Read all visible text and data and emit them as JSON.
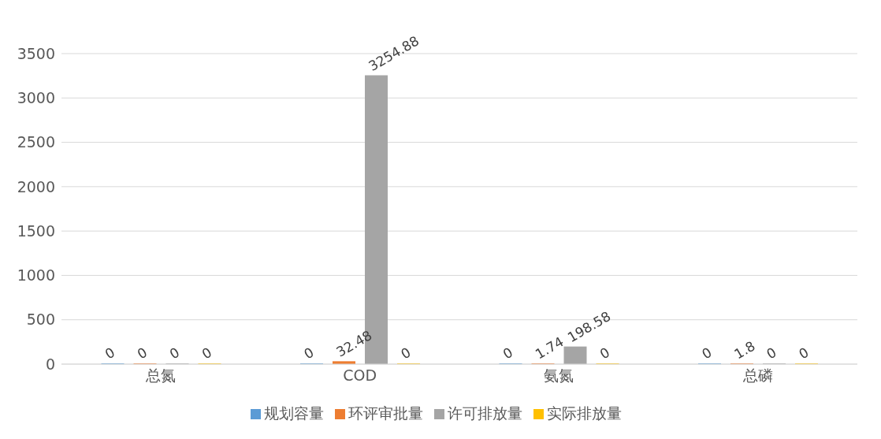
{
  "chart_data": {
    "type": "bar",
    "categories": [
      "总氮",
      "COD",
      "氨氮",
      "总磷"
    ],
    "series": [
      {
        "name": "规划容量",
        "color": "#5b9bd5",
        "values": [
          0,
          0,
          0,
          0
        ]
      },
      {
        "name": "环评审批量",
        "color": "#ed7d31",
        "values": [
          0,
          32.48,
          1.74,
          1.8
        ]
      },
      {
        "name": "许可排放量",
        "color": "#a5a5a5",
        "values": [
          0,
          3254.88,
          198.58,
          0
        ]
      },
      {
        "name": "实际排放量",
        "color": "#ffc000",
        "values": [
          0,
          0,
          0,
          0
        ]
      }
    ],
    "ylim": [
      0,
      3500
    ],
    "yticks": [
      0,
      500,
      1000,
      1500,
      2000,
      2500,
      3000,
      3500
    ],
    "grid": "y",
    "legend": "bottom",
    "data_labels": true
  }
}
